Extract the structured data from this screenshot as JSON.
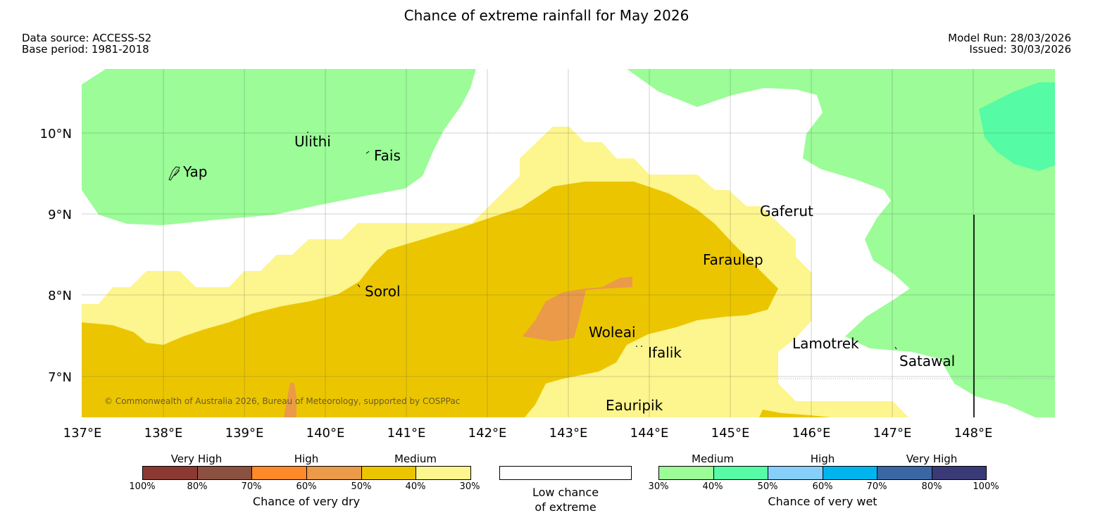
{
  "title": "Chance of extreme rainfall for May 2026",
  "meta": {
    "data_source": "Data source: ACCESS-S2",
    "base_period": "Base period: 1981-2018",
    "model_run": "Model Run: 28/03/2026",
    "issued": "Issued: 30/03/2026"
  },
  "map": {
    "lon_labels": [
      "137°E",
      "138°E",
      "139°E",
      "140°E",
      "141°E",
      "142°E",
      "143°E",
      "144°E",
      "145°E",
      "146°E",
      "147°E",
      "148°E"
    ],
    "lat_labels": [
      "10°N",
      "9°N",
      "8°N",
      "7°N"
    ],
    "places": [
      "Yap",
      "Ulithi",
      "Fais",
      "Gaferut",
      "Faraulep",
      "Sorol",
      "Woleai",
      "Ifalik",
      "Lamotrek",
      "Satawal",
      "Eauripik"
    ],
    "copyright": "© Commonwealth of Australia 2026, Bureau of Meteorology, supported by COSPPac"
  },
  "colors": {
    "dry_100_80": "#8b3a33",
    "dry_80_70": "#8b5040",
    "dry_70_60": "#ff8a2a",
    "dry_60_50": "#ea9a48",
    "dry_50_40": "#ebc600",
    "dry_40_30": "#fdf58d",
    "wet_30_40": "#9bfc98",
    "wet_40_50": "#55fba5",
    "wet_50_60": "#86cffa",
    "wet_60_70": "#00b4f0",
    "wet_70_80": "#3a66a4",
    "wet_80_100": "#3a3a78"
  },
  "legend": {
    "dry": {
      "categories": [
        "Very High",
        "High",
        "Medium"
      ],
      "ticks": [
        "100%",
        "80%",
        "70%",
        "60%",
        "50%",
        "40%",
        "30%"
      ],
      "caption": "Chance of very dry"
    },
    "low": {
      "line1": "Low chance",
      "line2": "of extreme"
    },
    "wet": {
      "categories": [
        "Medium",
        "High",
        "Very High"
      ],
      "ticks": [
        "30%",
        "40%",
        "50%",
        "60%",
        "70%",
        "80%",
        "100%"
      ],
      "caption": "Chance of very wet"
    }
  }
}
